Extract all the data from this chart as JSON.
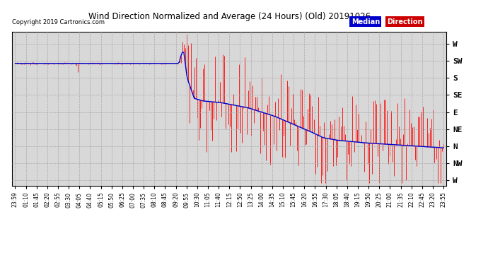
{
  "title": "Wind Direction Normalized and Average (24 Hours) (Old) 20191026",
  "copyright": "Copyright 2019 Cartronics.com",
  "ytick_labels": [
    "W",
    "SW",
    "S",
    "SE",
    "E",
    "NE",
    "N",
    "NW",
    "W"
  ],
  "ytick_values": [
    8,
    7,
    6,
    5,
    4,
    3,
    2,
    1,
    0
  ],
  "ylim": [
    -0.3,
    8.7
  ],
  "bg_color": "#d8d8d8",
  "grid_color": "#aaaaaa",
  "red_color": "#ff0000",
  "blue_color": "#0000cc",
  "legend_median_bg": "#0000cc",
  "legend_direction_bg": "#cc0000",
  "tick_labels": [
    "23:59",
    "01:10",
    "01:45",
    "02:20",
    "02:55",
    "03:30",
    "04:05",
    "04:40",
    "05:15",
    "05:50",
    "06:25",
    "07:00",
    "07:35",
    "08:10",
    "08:45",
    "09:20",
    "09:55",
    "10:30",
    "11:05",
    "11:40",
    "12:15",
    "12:50",
    "13:25",
    "14:00",
    "14:35",
    "15:10",
    "15:45",
    "16:20",
    "16:55",
    "17:30",
    "18:05",
    "18:40",
    "19:15",
    "19:50",
    "20:25",
    "21:00",
    "21:35",
    "22:10",
    "22:45",
    "23:20",
    "23:55"
  ]
}
